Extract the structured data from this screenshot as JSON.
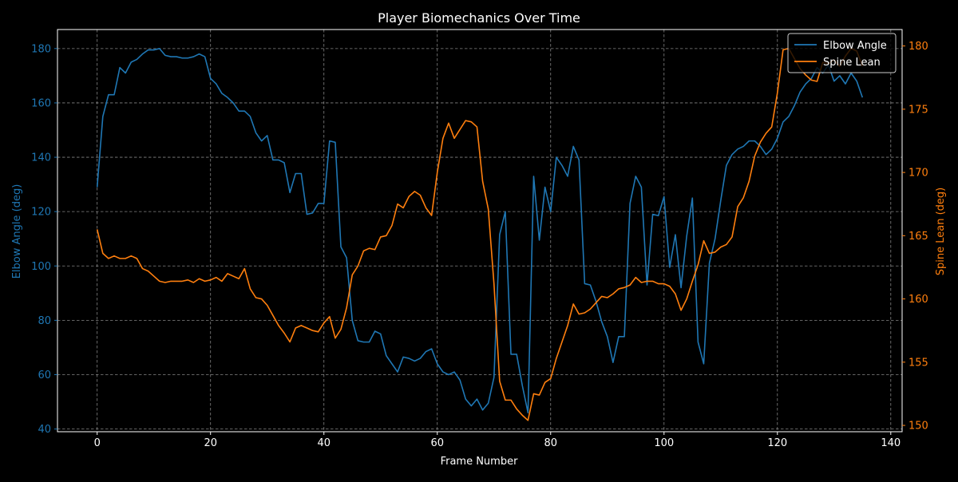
{
  "chart_data": {
    "type": "line",
    "title": "Player Biomechanics Over Time",
    "xlabel": "Frame Number",
    "ylabel_left": "Elbow Angle (deg)",
    "ylabel_right": "Spine Lean (deg)",
    "xlim": [
      -7,
      142
    ],
    "ylim_left": [
      39,
      187
    ],
    "ylim_right": [
      149.5,
      181.3
    ],
    "xticks": [
      0,
      20,
      40,
      60,
      80,
      100,
      120,
      140
    ],
    "yticks_left": [
      40,
      60,
      80,
      100,
      120,
      140,
      160,
      180
    ],
    "yticks_right": [
      150,
      155,
      160,
      165,
      170,
      175,
      180
    ],
    "grid": true,
    "legend_position": "top-right",
    "colors": {
      "elbow": "#1f77b4",
      "spine": "#ff7f0e",
      "background": "#000000",
      "foreground": "#ffffff",
      "grid": "#b0b0b0"
    },
    "series": [
      {
        "name": "Elbow Angle",
        "axis": "left",
        "x": [
          0,
          1,
          2,
          3,
          4,
          5,
          6,
          7,
          8,
          9,
          10,
          11,
          12,
          13,
          14,
          15,
          16,
          17,
          18,
          19,
          20,
          21,
          22,
          23,
          24,
          25,
          26,
          27,
          28,
          29,
          30,
          31,
          32,
          33,
          34,
          35,
          36,
          37,
          38,
          39,
          40,
          41,
          42,
          43,
          44,
          45,
          46,
          47,
          48,
          49,
          50,
          51,
          52,
          53,
          54,
          55,
          56,
          57,
          58,
          59,
          60,
          61,
          62,
          63,
          64,
          65,
          66,
          67,
          68,
          69,
          70,
          71,
          72,
          73,
          74,
          75,
          76,
          77,
          78,
          79,
          80,
          81,
          82,
          83,
          84,
          85,
          86,
          87,
          88,
          89,
          90,
          91,
          92,
          93,
          94,
          95,
          96,
          97,
          98,
          99,
          100,
          101,
          102,
          103,
          104,
          105,
          106,
          107,
          108,
          109,
          110,
          111,
          112,
          113,
          114,
          115,
          116,
          117,
          118,
          119,
          120,
          121,
          122,
          123,
          124,
          125,
          126,
          127,
          128,
          129,
          130,
          131,
          132,
          133,
          134,
          135
        ],
        "values": [
          129,
          155,
          163,
          163,
          173,
          171,
          175,
          176,
          178,
          179.5,
          179.5,
          180,
          177.5,
          177,
          177,
          176.5,
          176.5,
          177,
          178,
          177,
          169,
          167,
          163.5,
          162,
          160,
          157,
          157,
          155,
          149,
          146,
          148,
          139,
          139,
          138,
          127,
          134,
          134,
          119,
          119.5,
          123,
          123,
          146,
          145.5,
          107,
          103,
          80,
          72.5,
          72,
          72,
          76,
          75,
          67,
          64,
          61,
          66.5,
          66,
          65,
          66,
          68.5,
          69.5,
          64,
          61,
          60,
          61,
          58,
          51,
          48.5,
          51,
          47,
          49.5,
          59,
          111.5,
          120,
          67.5,
          67.5,
          56,
          46,
          133,
          109.5,
          129,
          120,
          140,
          137,
          133,
          144,
          139,
          93.5,
          93,
          87,
          79.5,
          74,
          64.5,
          74,
          74,
          123,
          133,
          129,
          93,
          119,
          118.5,
          125.5,
          99.5,
          111.5,
          92,
          111,
          125,
          72,
          64,
          101,
          110,
          124,
          137,
          141,
          143,
          144,
          146,
          146,
          144,
          141,
          143,
          147,
          153,
          155,
          159,
          164,
          167,
          169,
          173,
          171,
          174,
          168,
          170,
          167,
          171,
          168,
          162
        ]
      },
      {
        "name": "Spine Lean",
        "axis": "right",
        "x": [
          0,
          1,
          2,
          3,
          4,
          5,
          6,
          7,
          8,
          9,
          10,
          11,
          12,
          13,
          14,
          15,
          16,
          17,
          18,
          19,
          20,
          21,
          22,
          23,
          24,
          25,
          26,
          27,
          28,
          29,
          30,
          31,
          32,
          33,
          34,
          35,
          36,
          37,
          38,
          39,
          40,
          41,
          42,
          43,
          44,
          45,
          46,
          47,
          48,
          49,
          50,
          51,
          52,
          53,
          54,
          55,
          56,
          57,
          58,
          59,
          60,
          61,
          62,
          63,
          64,
          65,
          66,
          67,
          68,
          69,
          70,
          71,
          72,
          73,
          74,
          75,
          76,
          77,
          78,
          79,
          80,
          81,
          82,
          83,
          84,
          85,
          86,
          87,
          88,
          89,
          90,
          91,
          92,
          93,
          94,
          95,
          96,
          97,
          98,
          99,
          100,
          101,
          102,
          103,
          104,
          105,
          106,
          107,
          108,
          109,
          110,
          111,
          112,
          113,
          114,
          115,
          116,
          117,
          118,
          119,
          120,
          121,
          122,
          123,
          124,
          125,
          126,
          127,
          128,
          129,
          130,
          131,
          132,
          133,
          134,
          135
        ],
        "values": [
          165.5,
          163.6,
          163.2,
          163.4,
          163.2,
          163.2,
          163.4,
          163.2,
          162.4,
          162.2,
          161.8,
          161.4,
          161.3,
          161.4,
          161.4,
          161.4,
          161.5,
          161.3,
          161.6,
          161.4,
          161.5,
          161.7,
          161.4,
          162,
          161.8,
          161.6,
          162.4,
          160.8,
          160.1,
          160,
          159.5,
          158.7,
          157.9,
          157.3,
          156.6,
          157.7,
          157.9,
          157.7,
          157.5,
          157.4,
          158.1,
          158.6,
          156.9,
          157.6,
          159.3,
          161.9,
          162.6,
          163.8,
          164,
          163.9,
          164.9,
          165,
          165.8,
          167.5,
          167.2,
          168.1,
          168.5,
          168.2,
          167.2,
          166.6,
          170,
          172.7,
          173.9,
          172.7,
          173.4,
          174.1,
          174,
          173.6,
          169.3,
          167.1,
          161.2,
          153.5,
          152,
          152,
          151.3,
          150.8,
          150.4,
          152.5,
          152.4,
          153.4,
          153.7,
          155.3,
          156.6,
          157.9,
          159.6,
          158.8,
          158.9,
          159.2,
          159.7,
          160.2,
          160.1,
          160.4,
          160.8,
          160.9,
          161.1,
          161.7,
          161.3,
          161.4,
          161.4,
          161.2,
          161.2,
          161,
          160.4,
          159.1,
          160,
          161.4,
          162.7,
          164.6,
          163.6,
          163.7,
          164.1,
          164.3,
          164.9,
          167.3,
          168,
          169.3,
          171.3,
          172.4,
          173.1,
          173.6,
          176.3,
          179.7,
          179.8,
          179,
          178.2,
          177.7,
          177.3,
          177.2,
          178.7,
          178.6,
          178.9,
          178.4,
          179.2,
          179.8,
          179.6,
          178.4
        ]
      }
    ]
  }
}
